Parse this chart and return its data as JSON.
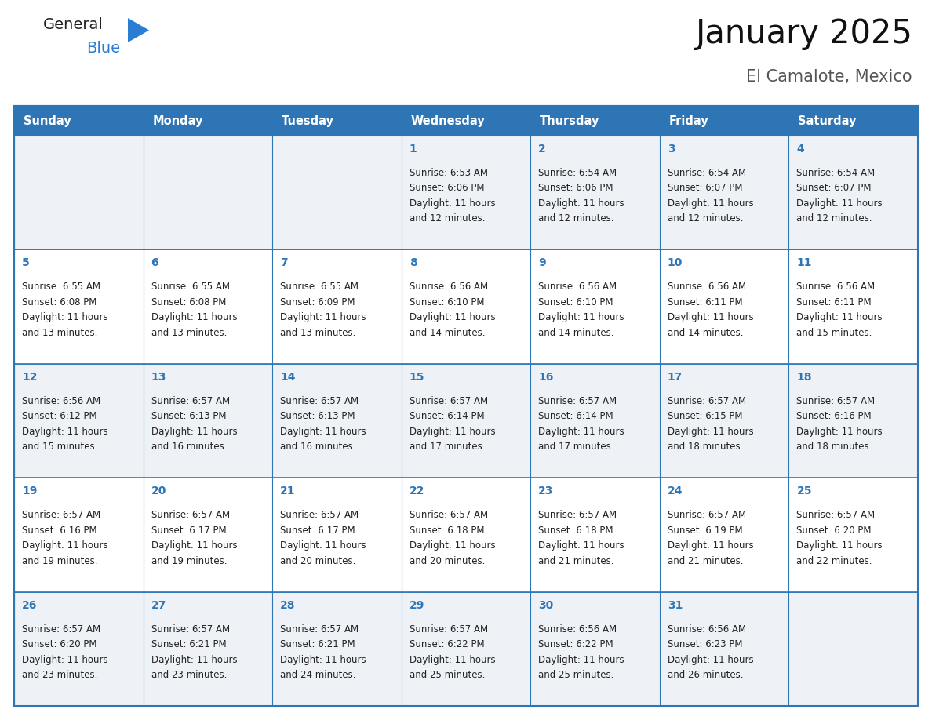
{
  "title": "January 2025",
  "subtitle": "El Camalote, Mexico",
  "days_of_week": [
    "Sunday",
    "Monday",
    "Tuesday",
    "Wednesday",
    "Thursday",
    "Friday",
    "Saturday"
  ],
  "header_bg": "#2e75b6",
  "header_text": "#ffffff",
  "row_bg_odd": "#eef2f7",
  "row_bg_even": "#ffffff",
  "border_color": "#2e75b6",
  "day_number_color": "#2e75b6",
  "text_color": "#222222",
  "calendar": [
    [
      null,
      null,
      null,
      {
        "day": 1,
        "sunrise": "6:53 AM",
        "sunset": "6:06 PM",
        "daylight_h": "11 hours",
        "daylight_m": "12 minutes"
      },
      {
        "day": 2,
        "sunrise": "6:54 AM",
        "sunset": "6:06 PM",
        "daylight_h": "11 hours",
        "daylight_m": "12 minutes"
      },
      {
        "day": 3,
        "sunrise": "6:54 AM",
        "sunset": "6:07 PM",
        "daylight_h": "11 hours",
        "daylight_m": "12 minutes"
      },
      {
        "day": 4,
        "sunrise": "6:54 AM",
        "sunset": "6:07 PM",
        "daylight_h": "11 hours",
        "daylight_m": "12 minutes"
      }
    ],
    [
      {
        "day": 5,
        "sunrise": "6:55 AM",
        "sunset": "6:08 PM",
        "daylight_h": "11 hours",
        "daylight_m": "13 minutes"
      },
      {
        "day": 6,
        "sunrise": "6:55 AM",
        "sunset": "6:08 PM",
        "daylight_h": "11 hours",
        "daylight_m": "13 minutes"
      },
      {
        "day": 7,
        "sunrise": "6:55 AM",
        "sunset": "6:09 PM",
        "daylight_h": "11 hours",
        "daylight_m": "13 minutes"
      },
      {
        "day": 8,
        "sunrise": "6:56 AM",
        "sunset": "6:10 PM",
        "daylight_h": "11 hours",
        "daylight_m": "14 minutes"
      },
      {
        "day": 9,
        "sunrise": "6:56 AM",
        "sunset": "6:10 PM",
        "daylight_h": "11 hours",
        "daylight_m": "14 minutes"
      },
      {
        "day": 10,
        "sunrise": "6:56 AM",
        "sunset": "6:11 PM",
        "daylight_h": "11 hours",
        "daylight_m": "14 minutes"
      },
      {
        "day": 11,
        "sunrise": "6:56 AM",
        "sunset": "6:11 PM",
        "daylight_h": "11 hours",
        "daylight_m": "15 minutes"
      }
    ],
    [
      {
        "day": 12,
        "sunrise": "6:56 AM",
        "sunset": "6:12 PM",
        "daylight_h": "11 hours",
        "daylight_m": "15 minutes"
      },
      {
        "day": 13,
        "sunrise": "6:57 AM",
        "sunset": "6:13 PM",
        "daylight_h": "11 hours",
        "daylight_m": "16 minutes"
      },
      {
        "day": 14,
        "sunrise": "6:57 AM",
        "sunset": "6:13 PM",
        "daylight_h": "11 hours",
        "daylight_m": "16 minutes"
      },
      {
        "day": 15,
        "sunrise": "6:57 AM",
        "sunset": "6:14 PM",
        "daylight_h": "11 hours",
        "daylight_m": "17 minutes"
      },
      {
        "day": 16,
        "sunrise": "6:57 AM",
        "sunset": "6:14 PM",
        "daylight_h": "11 hours",
        "daylight_m": "17 minutes"
      },
      {
        "day": 17,
        "sunrise": "6:57 AM",
        "sunset": "6:15 PM",
        "daylight_h": "11 hours",
        "daylight_m": "18 minutes"
      },
      {
        "day": 18,
        "sunrise": "6:57 AM",
        "sunset": "6:16 PM",
        "daylight_h": "11 hours",
        "daylight_m": "18 minutes"
      }
    ],
    [
      {
        "day": 19,
        "sunrise": "6:57 AM",
        "sunset": "6:16 PM",
        "daylight_h": "11 hours",
        "daylight_m": "19 minutes"
      },
      {
        "day": 20,
        "sunrise": "6:57 AM",
        "sunset": "6:17 PM",
        "daylight_h": "11 hours",
        "daylight_m": "19 minutes"
      },
      {
        "day": 21,
        "sunrise": "6:57 AM",
        "sunset": "6:17 PM",
        "daylight_h": "11 hours",
        "daylight_m": "20 minutes"
      },
      {
        "day": 22,
        "sunrise": "6:57 AM",
        "sunset": "6:18 PM",
        "daylight_h": "11 hours",
        "daylight_m": "20 minutes"
      },
      {
        "day": 23,
        "sunrise": "6:57 AM",
        "sunset": "6:18 PM",
        "daylight_h": "11 hours",
        "daylight_m": "21 minutes"
      },
      {
        "day": 24,
        "sunrise": "6:57 AM",
        "sunset": "6:19 PM",
        "daylight_h": "11 hours",
        "daylight_m": "21 minutes"
      },
      {
        "day": 25,
        "sunrise": "6:57 AM",
        "sunset": "6:20 PM",
        "daylight_h": "11 hours",
        "daylight_m": "22 minutes"
      }
    ],
    [
      {
        "day": 26,
        "sunrise": "6:57 AM",
        "sunset": "6:20 PM",
        "daylight_h": "11 hours",
        "daylight_m": "23 minutes"
      },
      {
        "day": 27,
        "sunrise": "6:57 AM",
        "sunset": "6:21 PM",
        "daylight_h": "11 hours",
        "daylight_m": "23 minutes"
      },
      {
        "day": 28,
        "sunrise": "6:57 AM",
        "sunset": "6:21 PM",
        "daylight_h": "11 hours",
        "daylight_m": "24 minutes"
      },
      {
        "day": 29,
        "sunrise": "6:57 AM",
        "sunset": "6:22 PM",
        "daylight_h": "11 hours",
        "daylight_m": "25 minutes"
      },
      {
        "day": 30,
        "sunrise": "6:56 AM",
        "sunset": "6:22 PM",
        "daylight_h": "11 hours",
        "daylight_m": "25 minutes"
      },
      {
        "day": 31,
        "sunrise": "6:56 AM",
        "sunset": "6:23 PM",
        "daylight_h": "11 hours",
        "daylight_m": "26 minutes"
      },
      null
    ]
  ],
  "fig_width": 11.88,
  "fig_height": 9.18,
  "title_fontsize": 30,
  "subtitle_fontsize": 15,
  "header_fontsize": 10.5,
  "day_num_fontsize": 10,
  "cell_text_fontsize": 8.5
}
